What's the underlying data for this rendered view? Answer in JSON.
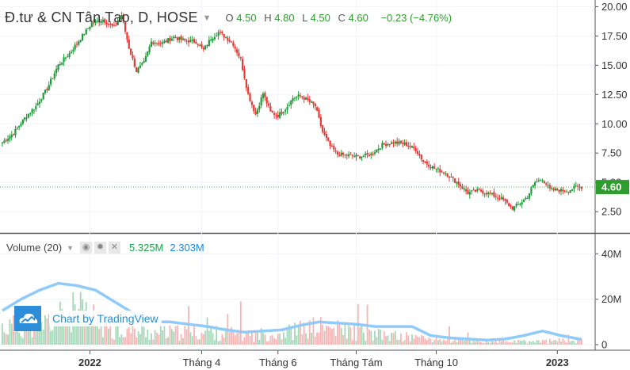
{
  "legend": {
    "title": "Đ.tư & CN Tân Tạo, D, HOSE",
    "open_label": "O",
    "open": "4.50",
    "high_label": "H",
    "high": "4.80",
    "low_label": "L",
    "low": "4.50",
    "close_label": "C",
    "close": "4.60",
    "change": "−0.23 (−4.76%)"
  },
  "volume_legend": {
    "title": "Volume (20)",
    "value_1": "5.325M",
    "value_2": "2.303M"
  },
  "watermark": {
    "text": "Chart by TradingView"
  },
  "colors": {
    "up": "#1f9b3a",
    "down": "#e53935",
    "vol_up": "#a5d6b7",
    "vol_down": "#f8b4b4",
    "ma": "#90caf9",
    "price_tag": "#2e9d2e"
  },
  "chart_data": [
    {
      "type": "candlestick",
      "x_ticks": [
        "2022",
        "Tháng 4",
        "Tháng 6",
        "Tháng Tám",
        "Tháng 10",
        "2023"
      ],
      "y_ticks": [
        "2.50",
        "5.00",
        "7.50",
        "10.00",
        "12.50",
        "15.00",
        "17.50",
        "20.00"
      ],
      "ylim": [
        0.75,
        20.3
      ],
      "last_price": "4.60",
      "anchors": [
        [
          0,
          8.4
        ],
        [
          6,
          9.2
        ],
        [
          12,
          10.5
        ],
        [
          18,
          11.5
        ],
        [
          24,
          13.0
        ],
        [
          30,
          15.0
        ],
        [
          36,
          16.0
        ],
        [
          42,
          17.3
        ],
        [
          48,
          18.6
        ],
        [
          54,
          18.9
        ],
        [
          60,
          18.2
        ],
        [
          64,
          19.3
        ],
        [
          68,
          16.5
        ],
        [
          72,
          14.5
        ],
        [
          76,
          15.2
        ],
        [
          80,
          17.0
        ],
        [
          86,
          16.9
        ],
        [
          92,
          17.4
        ],
        [
          98,
          17.1
        ],
        [
          104,
          17.0
        ],
        [
          108,
          16.3
        ],
        [
          112,
          17.3
        ],
        [
          116,
          17.8
        ],
        [
          120,
          17.4
        ],
        [
          124,
          16.8
        ],
        [
          128,
          15.5
        ],
        [
          132,
          12.5
        ],
        [
          136,
          10.8
        ],
        [
          140,
          12.6
        ],
        [
          144,
          11.0
        ],
        [
          148,
          10.7
        ],
        [
          152,
          11.3
        ],
        [
          156,
          12.2
        ],
        [
          160,
          12.4
        ],
        [
          164,
          12.0
        ],
        [
          168,
          11.5
        ],
        [
          172,
          9.3
        ],
        [
          176,
          8.1
        ],
        [
          180,
          7.4
        ],
        [
          186,
          7.3
        ],
        [
          192,
          7.2
        ],
        [
          198,
          7.4
        ],
        [
          204,
          8.2
        ],
        [
          210,
          8.4
        ],
        [
          216,
          8.3
        ],
        [
          222,
          7.8
        ],
        [
          226,
          6.8
        ],
        [
          232,
          6.2
        ],
        [
          238,
          5.8
        ],
        [
          244,
          5.0
        ],
        [
          250,
          4.1
        ],
        [
          256,
          4.3
        ],
        [
          262,
          4.0
        ],
        [
          268,
          3.6
        ],
        [
          274,
          2.8
        ],
        [
          278,
          3.2
        ],
        [
          282,
          3.8
        ],
        [
          286,
          5.0
        ],
        [
          290,
          5.3
        ],
        [
          294,
          4.4
        ],
        [
          300,
          4.3
        ],
        [
          304,
          4.3
        ],
        [
          308,
          4.6
        ],
        [
          311,
          4.6
        ]
      ]
    },
    {
      "type": "bar",
      "name": "Volume (20)",
      "y_ticks": [
        "0",
        "20M",
        "40M"
      ],
      "ylim": [
        0,
        45
      ],
      "volume_profile": [
        [
          0,
          9
        ],
        [
          20,
          10
        ],
        [
          40,
          17
        ],
        [
          60,
          8
        ],
        [
          80,
          6
        ],
        [
          110,
          6
        ],
        [
          135,
          5
        ],
        [
          150,
          6
        ],
        [
          170,
          9
        ],
        [
          200,
          5
        ],
        [
          230,
          3
        ],
        [
          260,
          1.5
        ],
        [
          280,
          1.5
        ],
        [
          300,
          2
        ],
        [
          311,
          2
        ]
      ],
      "ma_anchors": [
        [
          0,
          15
        ],
        [
          10,
          20
        ],
        [
          20,
          24
        ],
        [
          30,
          27
        ],
        [
          40,
          26
        ],
        [
          50,
          24
        ],
        [
          60,
          19
        ],
        [
          70,
          14
        ],
        [
          80,
          10
        ],
        [
          90,
          10
        ],
        [
          100,
          9
        ],
        [
          110,
          8
        ],
        [
          120,
          6.5
        ],
        [
          130,
          5.5
        ],
        [
          140,
          6
        ],
        [
          150,
          6.5
        ],
        [
          160,
          8.5
        ],
        [
          170,
          10
        ],
        [
          180,
          9.5
        ],
        [
          190,
          9
        ],
        [
          200,
          8
        ],
        [
          210,
          8
        ],
        [
          220,
          8
        ],
        [
          230,
          4
        ],
        [
          240,
          3
        ],
        [
          250,
          2.5
        ],
        [
          260,
          2
        ],
        [
          270,
          2.5
        ],
        [
          280,
          4
        ],
        [
          290,
          6
        ],
        [
          300,
          4
        ],
        [
          311,
          2.3
        ]
      ]
    }
  ]
}
